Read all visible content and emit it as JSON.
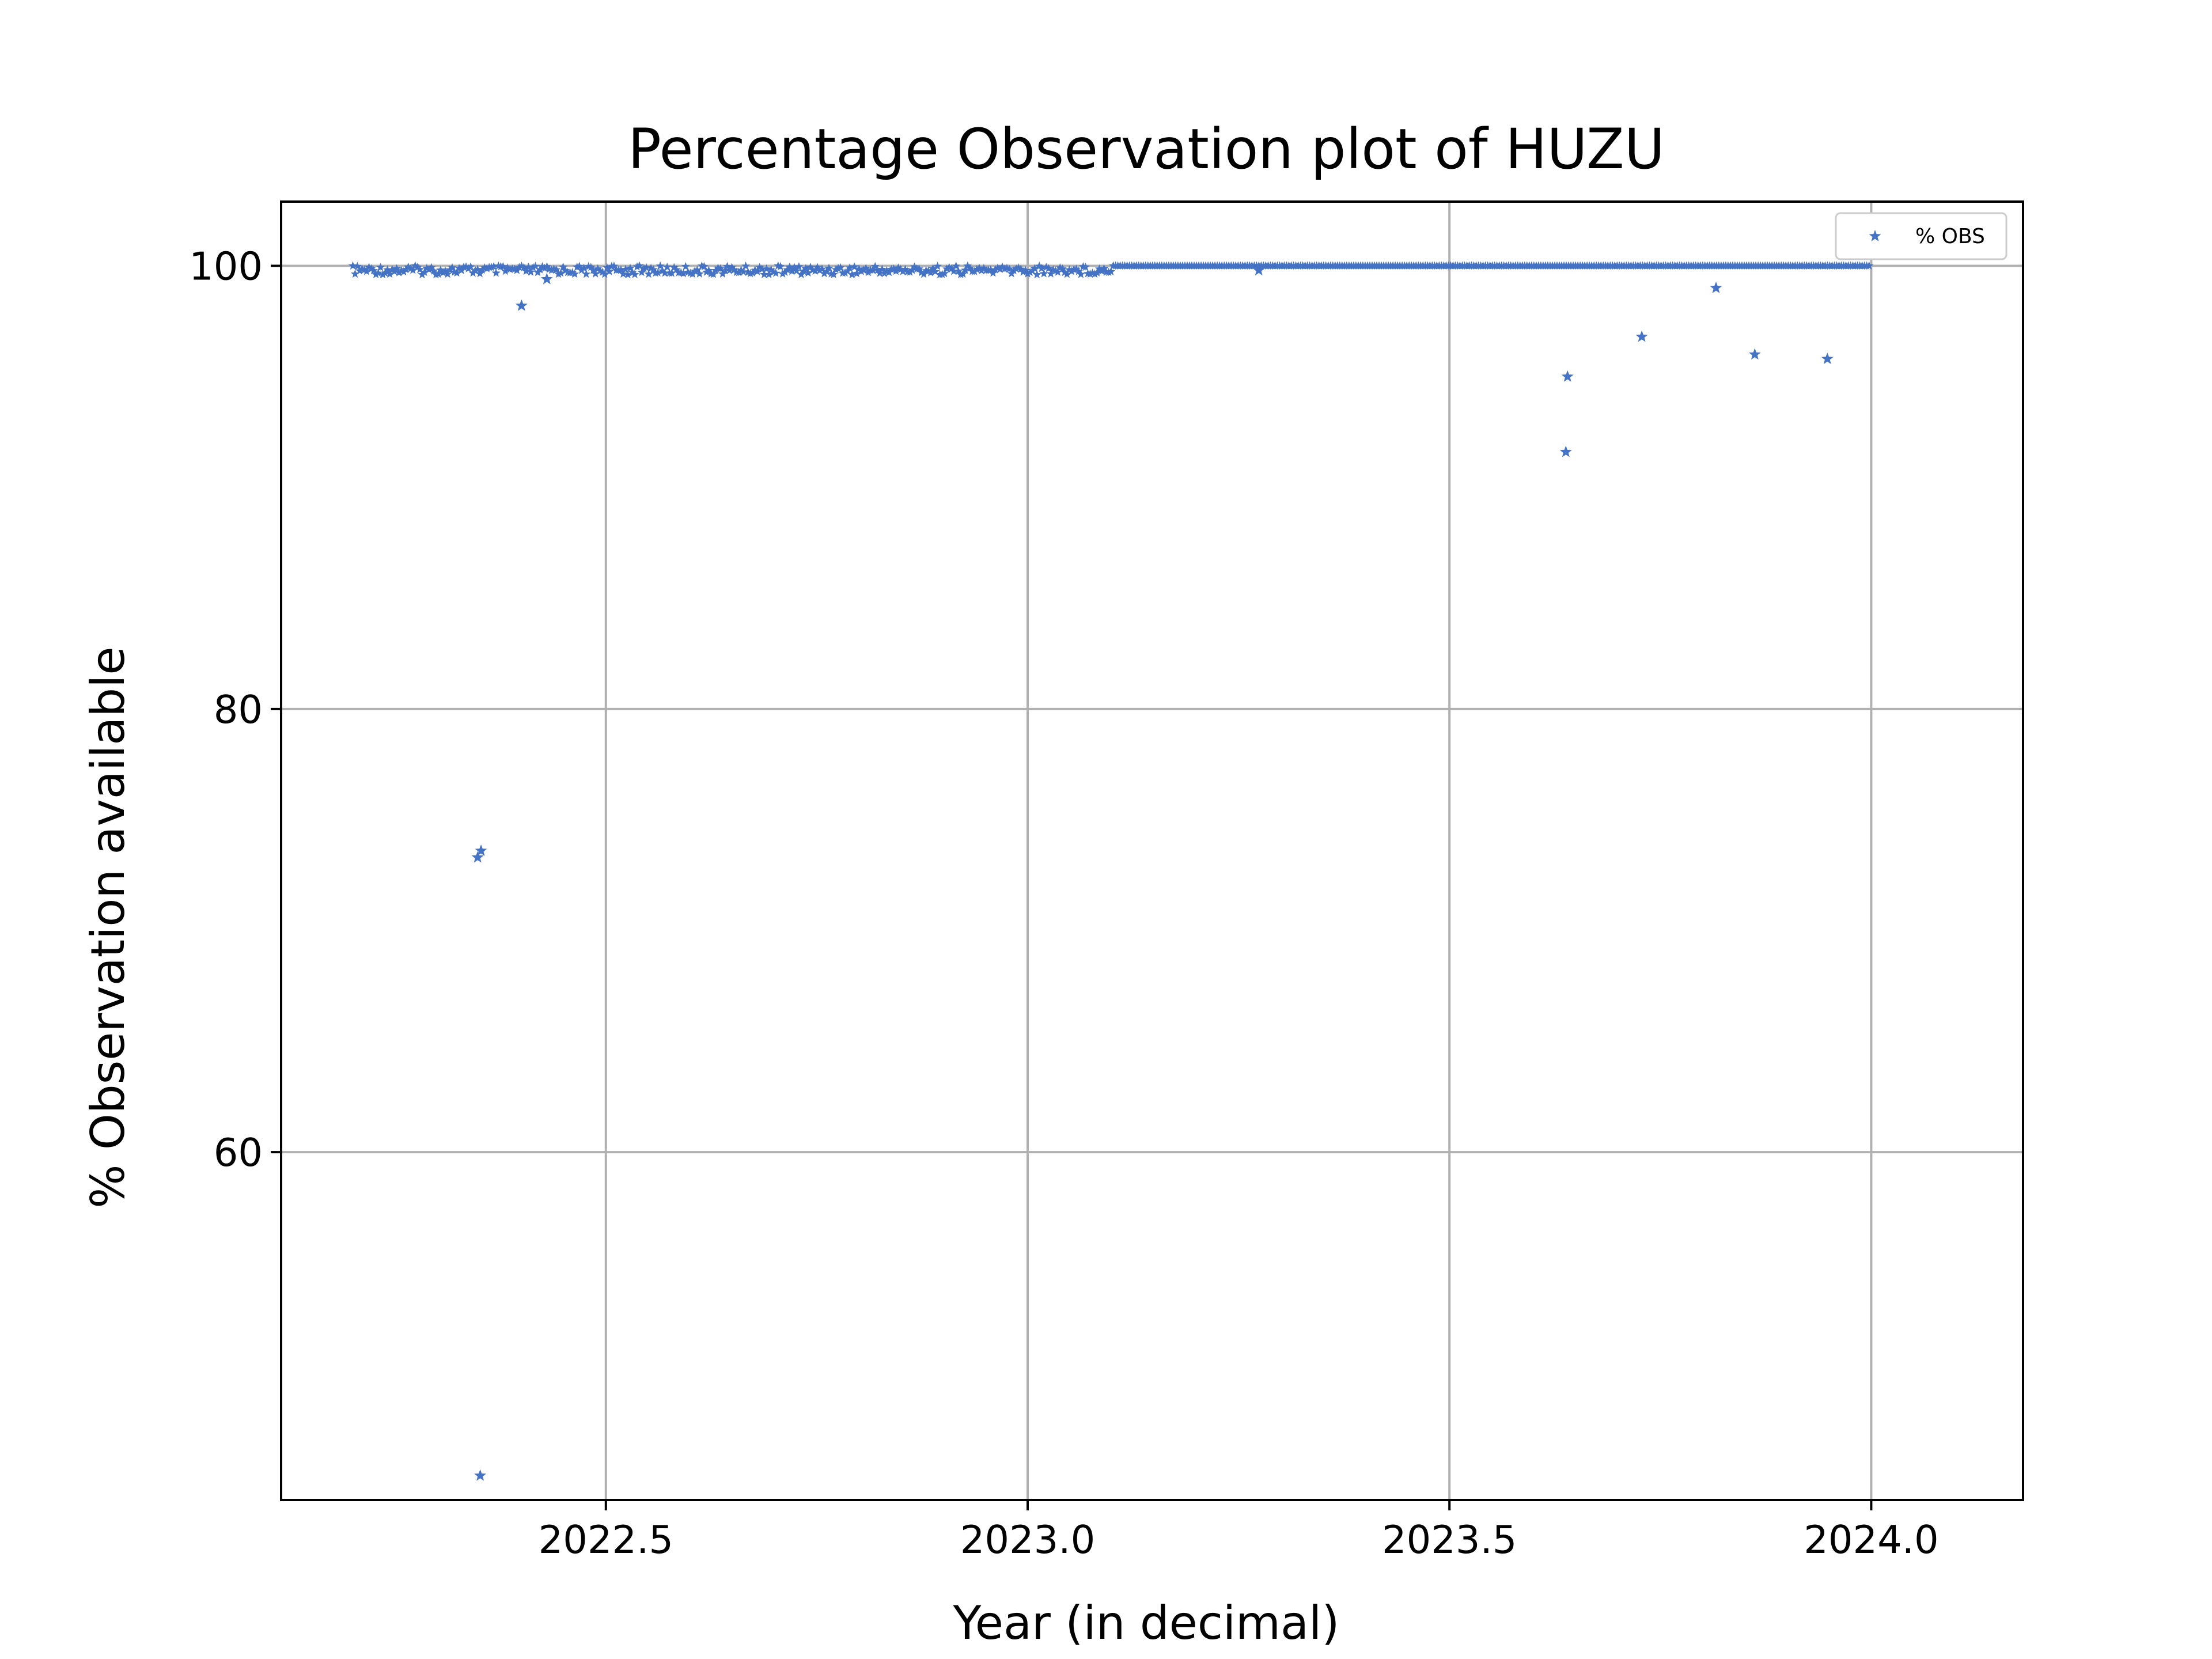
{
  "chart_data": {
    "type": "scatter",
    "title": "Percentage Observation plot of HUZU",
    "xlabel": "Year (in decimal)",
    "ylabel": "% Observation available",
    "xlim": [
      2022.115,
      2024.18
    ],
    "ylim": [
      44.3,
      102.9
    ],
    "xticks": [
      2022.5,
      2023.0,
      2023.5,
      2024.0
    ],
    "xtick_labels": [
      "2022.5",
      "2023.0",
      "2023.5",
      "2024.0"
    ],
    "yticks": [
      60,
      80,
      100
    ],
    "ytick_labels": [
      "60",
      "80",
      "100"
    ],
    "grid": true,
    "legend": {
      "position": "top-right",
      "entries": [
        "% OBS"
      ]
    },
    "marker": "star",
    "series_color": "#4472c4",
    "series": [
      {
        "name": "% OBS",
        "dense_band": {
          "x_start": 2022.2,
          "x_end": 2024.0,
          "y_min": 99.6,
          "y_max": 100.0,
          "step": 0.00274
        },
        "points": [
          [
            2022.348,
            73.3
          ],
          [
            2022.352,
            73.6
          ],
          [
            2022.351,
            45.4
          ],
          [
            2022.4,
            98.2
          ],
          [
            2022.43,
            99.4
          ],
          [
            2023.274,
            99.8
          ],
          [
            2023.638,
            91.6
          ],
          [
            2023.64,
            95.0
          ],
          [
            2023.728,
            96.8
          ],
          [
            2023.816,
            99.0
          ],
          [
            2023.862,
            96.0
          ],
          [
            2023.948,
            95.8
          ]
        ]
      }
    ]
  }
}
